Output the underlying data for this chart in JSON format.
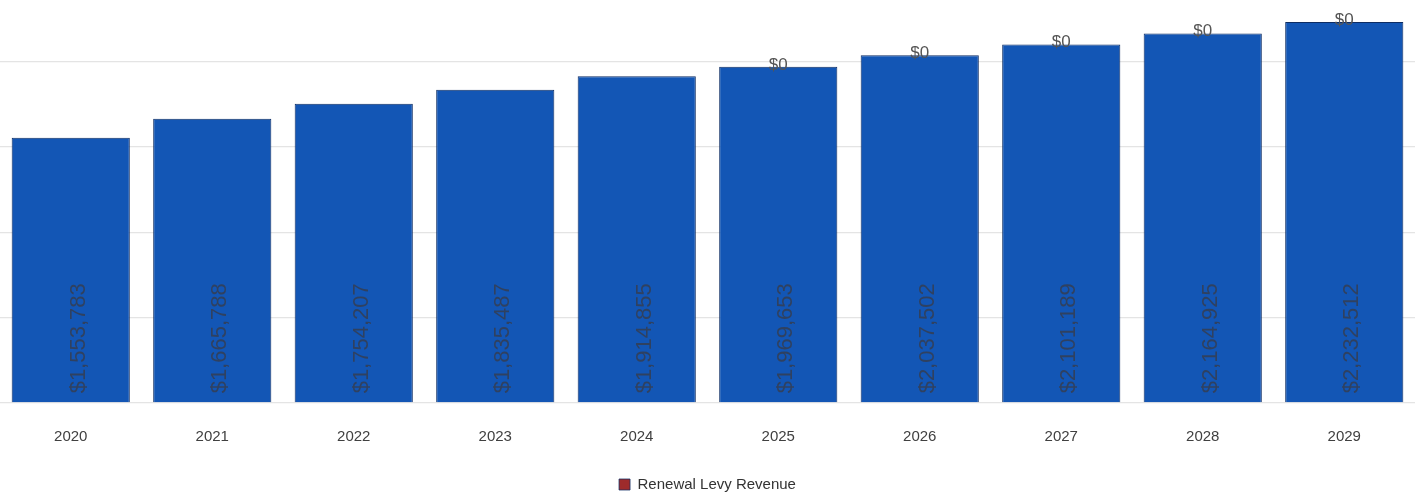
{
  "chart_data": {
    "type": "bar",
    "stacked": true,
    "categories": [
      "2020",
      "2021",
      "2022",
      "2023",
      "2024",
      "2025",
      "2026",
      "2027",
      "2028",
      "2029"
    ],
    "series": [
      {
        "color": "#1356b5",
        "values": [
          1553783,
          1665788,
          1754207,
          1835487,
          1914855,
          1969653,
          2037502,
          2101189,
          2164925,
          2232512
        ],
        "value_labels": [
          "$1,553,783",
          "$1,665,788",
          "$1,754,207",
          "$1,835,487",
          "$1,914,855",
          "$1,969,653",
          "$2,037,502",
          "$2,101,189",
          "$2,164,925",
          "$2,232,512"
        ]
      },
      {
        "name": "Renewal Levy Revenue",
        "color": "#9e2b2b",
        "values": [
          null,
          null,
          null,
          null,
          null,
          0,
          0,
          0,
          0,
          0
        ],
        "value_labels": [
          null,
          null,
          null,
          null,
          null,
          "$0",
          "$0",
          "$0",
          "$0",
          "$0"
        ]
      }
    ],
    "yticks": [
      {
        "value": 0,
        "label": null
      },
      {
        "value": 500000,
        "label": null
      },
      {
        "value": 1000000,
        "label": null
      },
      {
        "value": 1500000,
        "label": null
      },
      {
        "value": 2000000,
        "label": null
      }
    ],
    "tick_labels": "x",
    "grid": "y",
    "legend": "bottom"
  }
}
